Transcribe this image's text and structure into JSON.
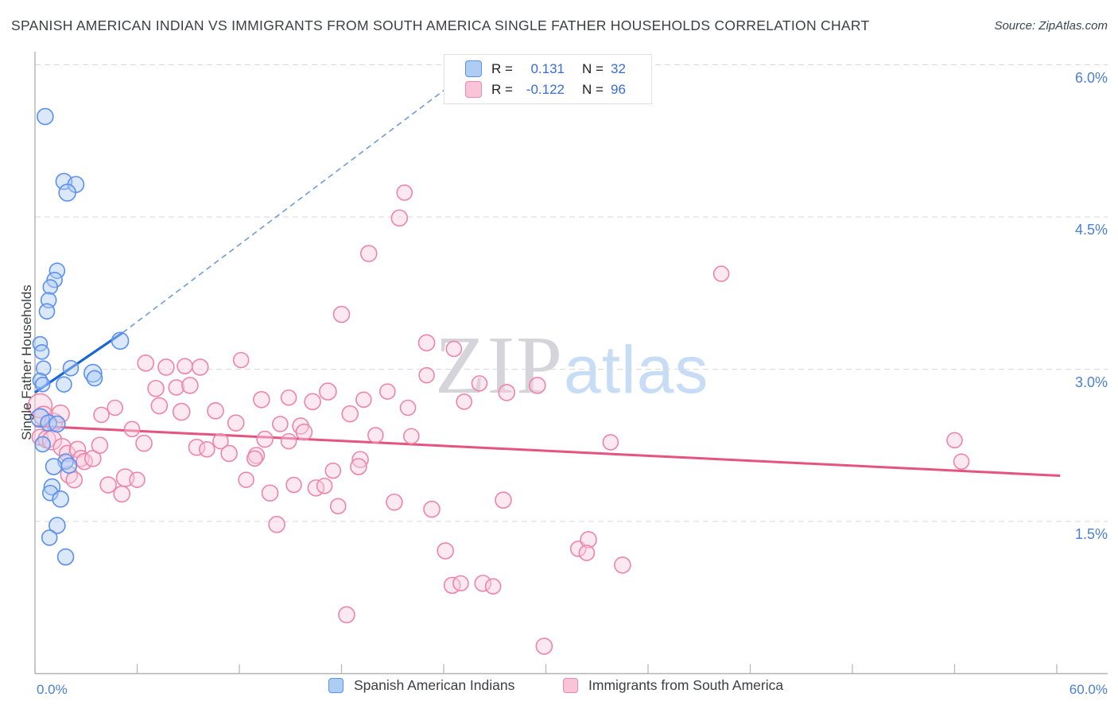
{
  "title": "SPANISH AMERICAN INDIAN VS IMMIGRANTS FROM SOUTH AMERICA SINGLE FATHER HOUSEHOLDS CORRELATION CHART",
  "source": "Source: ZipAtlas.com",
  "watermark": {
    "zip": "ZIP",
    "atlas": "atlas"
  },
  "ylabel": "Single Father Households",
  "colors": {
    "blue_stroke": "#5b8ff0",
    "blue_fill": "rgba(173,205,243,0.45)",
    "blue_trend": "#1b66d6",
    "blue_dash": "#6f9bd8",
    "pink_stroke": "#ee85a9",
    "pink_fill": "rgba(249,205,221,0.45)",
    "pink_trend": "#e5537f",
    "grid": "#d9d9d9",
    "axis": "#b3b3b3",
    "tick_label": "#4a7fd6"
  },
  "legend_box": {
    "rows": [
      {
        "r_label": "R =",
        "r_value": "0.131",
        "n_label": "N =",
        "n_value": "32"
      },
      {
        "r_label": "R =",
        "r_value": "-0.122",
        "n_label": "N =",
        "n_value": "96"
      }
    ]
  },
  "bottom_legend": [
    {
      "label": "Spanish American Indians"
    },
    {
      "label": "Immigrants from South America"
    }
  ],
  "axis": {
    "x_min": 0,
    "x_max": 60,
    "x_tick_step": 6,
    "x_label_left": "0.0%",
    "x_label_right": "60.0%",
    "y_gridlines": [
      6.0,
      4.5,
      3.0,
      1.5
    ],
    "y_tick_labels": [
      "6.0%",
      "4.5%",
      "3.0%",
      "1.5%"
    ]
  },
  "chart_data": {
    "type": "scatter",
    "xlabel": "",
    "ylabel": "Single Father Households",
    "xlim": [
      0,
      63
    ],
    "ylim": [
      0,
      6.3
    ],
    "series": [
      {
        "name": "Spanish American Indians",
        "r": 0.131,
        "n": 32,
        "trend_solid": {
          "x1": 0,
          "y1": 2.77,
          "x2": 5.15,
          "y2": 3.36
        },
        "trend_dashed": {
          "x1": 5.15,
          "y1": 3.36,
          "x2": 26.0,
          "y2": 6.0
        },
        "points": [
          [
            0.6,
            5.49,
            10
          ],
          [
            1.7,
            4.85,
            10
          ],
          [
            2.4,
            4.82,
            10
          ],
          [
            1.9,
            4.74,
            10.5
          ],
          [
            1.3,
            3.97,
            9.5
          ],
          [
            1.15,
            3.88,
            9.5
          ],
          [
            0.9,
            3.81,
            9
          ],
          [
            0.8,
            3.68,
            9.5
          ],
          [
            0.7,
            3.57,
            9.5
          ],
          [
            0.3,
            3.25,
            9
          ],
          [
            5.0,
            3.28,
            10.5
          ],
          [
            0.4,
            3.17,
            9
          ],
          [
            0.5,
            3.01,
            9
          ],
          [
            2.1,
            3.01,
            9.5
          ],
          [
            3.4,
            2.96,
            11
          ],
          [
            3.5,
            2.91,
            9.5
          ],
          [
            0.3,
            2.89,
            9
          ],
          [
            0.45,
            2.85,
            9
          ],
          [
            1.7,
            2.85,
            9.5
          ],
          [
            0.3,
            2.52,
            11.5
          ],
          [
            0.8,
            2.47,
            10
          ],
          [
            1.3,
            2.46,
            10
          ],
          [
            0.45,
            2.26,
            9.5
          ],
          [
            1.8,
            2.09,
            9.5
          ],
          [
            1.1,
            2.04,
            10
          ],
          [
            2.0,
            2.05,
            9.5
          ],
          [
            1.0,
            1.84,
            10
          ],
          [
            0.9,
            1.78,
            9.5
          ],
          [
            1.5,
            1.72,
            10
          ],
          [
            1.3,
            1.46,
            10
          ],
          [
            0.85,
            1.34,
            9.5
          ],
          [
            1.8,
            1.15,
            10
          ]
        ]
      },
      {
        "name": "Immigrants from South America",
        "r": -0.122,
        "n": 96,
        "trend_solid": {
          "x1": 0,
          "y1": 2.44,
          "x2": 60.2,
          "y2": 1.95
        },
        "points": [
          [
            21.7,
            4.74,
            9.5
          ],
          [
            21.4,
            4.49,
            10
          ],
          [
            19.6,
            4.14,
            10
          ],
          [
            40.3,
            3.94,
            9.5
          ],
          [
            18.0,
            3.54,
            10
          ],
          [
            23.0,
            3.26,
            10
          ],
          [
            24.6,
            3.2,
            9.5
          ],
          [
            6.5,
            3.06,
            10
          ],
          [
            7.7,
            3.02,
            10
          ],
          [
            8.8,
            3.03,
            9.5
          ],
          [
            9.7,
            3.02,
            10
          ],
          [
            12.1,
            3.09,
            9.5
          ],
          [
            23.0,
            2.94,
            9.5
          ],
          [
            7.1,
            2.81,
            10
          ],
          [
            8.3,
            2.82,
            9.5
          ],
          [
            9.1,
            2.84,
            10
          ],
          [
            7.3,
            2.64,
            10
          ],
          [
            8.6,
            2.58,
            10.5
          ],
          [
            10.6,
            2.59,
            10
          ],
          [
            13.3,
            2.7,
            10
          ],
          [
            14.9,
            2.72,
            9.5
          ],
          [
            16.3,
            2.68,
            10
          ],
          [
            17.2,
            2.78,
            10.5
          ],
          [
            19.3,
            2.7,
            9.5
          ],
          [
            20.7,
            2.78,
            9.5
          ],
          [
            18.5,
            2.56,
            10
          ],
          [
            21.9,
            2.62,
            9.5
          ],
          [
            11.8,
            2.47,
            10
          ],
          [
            14.4,
            2.46,
            9.5
          ],
          [
            15.6,
            2.44,
            10
          ],
          [
            15.8,
            2.38,
            10
          ],
          [
            13.5,
            2.31,
            10
          ],
          [
            14.9,
            2.29,
            9.5
          ],
          [
            5.7,
            2.41,
            9.5
          ],
          [
            6.4,
            2.27,
            10
          ],
          [
            9.5,
            2.23,
            10
          ],
          [
            10.1,
            2.21,
            9.5
          ],
          [
            10.9,
            2.29,
            9.5
          ],
          [
            11.4,
            2.17,
            10
          ],
          [
            13.0,
            2.15,
            10
          ],
          [
            19.1,
            2.11,
            10
          ],
          [
            20.0,
            2.35,
            9.5
          ],
          [
            22.1,
            2.34,
            9.5
          ],
          [
            25.2,
            2.68,
            9.5
          ],
          [
            26.1,
            2.86,
            9.5
          ],
          [
            27.7,
            2.77,
            10
          ],
          [
            29.5,
            2.84,
            10
          ],
          [
            33.8,
            2.28,
            9.5
          ],
          [
            12.4,
            1.91,
            9.5
          ],
          [
            13.8,
            1.78,
            10
          ],
          [
            15.2,
            1.86,
            9.5
          ],
          [
            16.5,
            1.83,
            10
          ],
          [
            17.0,
            1.85,
            9.5
          ],
          [
            17.5,
            2.0,
            9.5
          ],
          [
            19.0,
            2.04,
            10
          ],
          [
            17.8,
            1.65,
            9.5
          ],
          [
            21.1,
            1.69,
            10
          ],
          [
            23.3,
            1.62,
            10
          ],
          [
            27.5,
            1.71,
            10
          ],
          [
            14.2,
            1.47,
            10
          ],
          [
            24.1,
            1.21,
            10
          ],
          [
            24.5,
            0.87,
            10
          ],
          [
            25.0,
            0.89,
            9.5
          ],
          [
            26.3,
            0.89,
            10
          ],
          [
            26.9,
            0.86,
            9.5
          ],
          [
            31.9,
            1.23,
            9.5
          ],
          [
            32.5,
            1.32,
            10
          ],
          [
            32.4,
            1.19,
            9.5
          ],
          [
            18.3,
            0.58,
            10
          ],
          [
            29.9,
            0.27,
            10
          ],
          [
            54.0,
            2.3,
            9.5
          ],
          [
            54.4,
            2.09,
            9.5
          ],
          [
            34.5,
            1.07,
            10
          ],
          [
            0.3,
            2.64,
            15
          ],
          [
            0.5,
            2.54,
            12
          ],
          [
            1.1,
            2.48,
            11
          ],
          [
            1.5,
            2.56,
            11
          ],
          [
            0.3,
            2.33,
            10
          ],
          [
            0.7,
            2.31,
            11
          ],
          [
            1.0,
            2.3,
            12
          ],
          [
            1.6,
            2.23,
            11
          ],
          [
            1.9,
            2.17,
            10
          ],
          [
            2.5,
            2.21,
            10
          ],
          [
            2.0,
            1.96,
            10.5
          ],
          [
            2.7,
            2.12,
            10
          ],
          [
            2.3,
            1.91,
            10
          ],
          [
            2.9,
            2.09,
            10
          ],
          [
            3.4,
            2.12,
            10
          ],
          [
            3.8,
            2.25,
            10
          ],
          [
            5.3,
            1.93,
            11
          ],
          [
            4.3,
            1.86,
            10
          ],
          [
            5.1,
            1.77,
            10
          ],
          [
            3.9,
            2.55,
            9.5
          ],
          [
            4.7,
            2.62,
            9.5
          ],
          [
            6.0,
            1.91,
            9.5
          ],
          [
            12.9,
            2.12,
            9.5
          ]
        ]
      }
    ]
  }
}
